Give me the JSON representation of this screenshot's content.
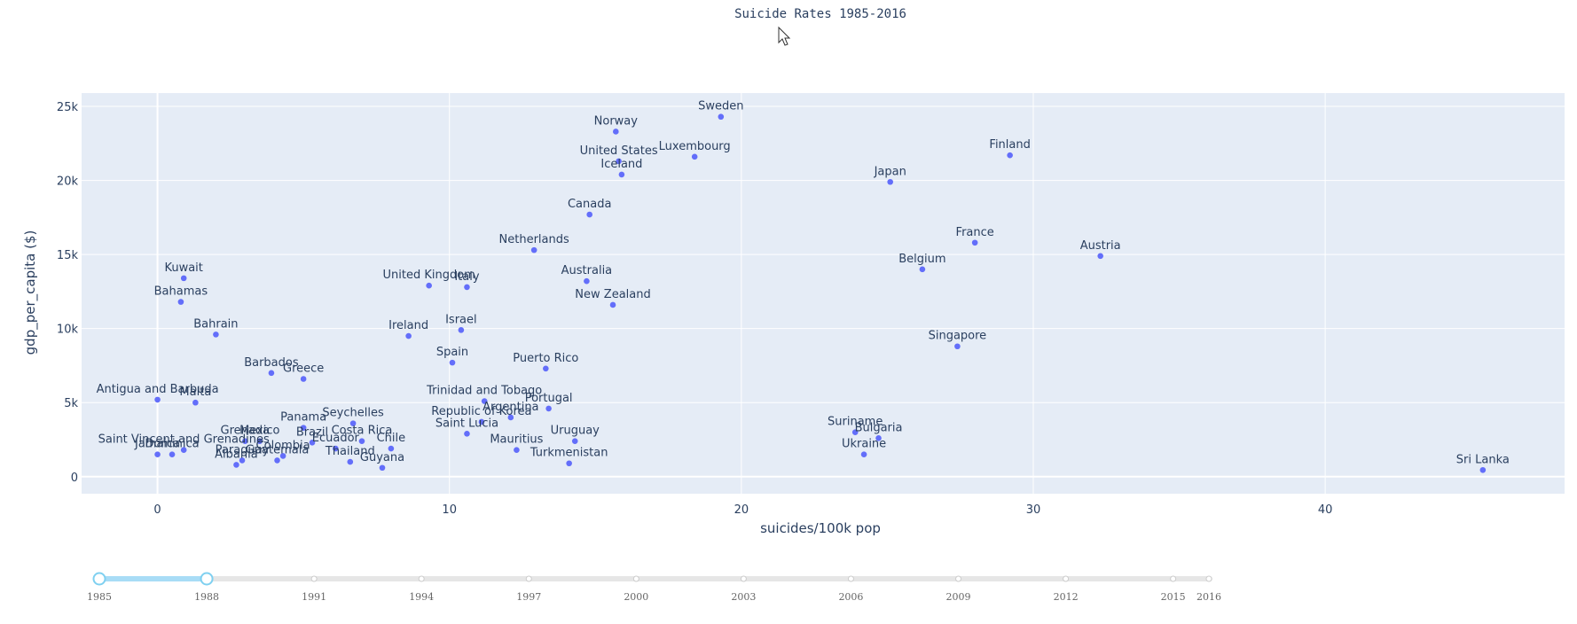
{
  "colors": {
    "plot_bg": "#e5ecf6",
    "grid": "#ffffff",
    "marker": "#636efa",
    "text": "#2a3f5f",
    "slider_track": "#e6e6e6",
    "slider_active": "#a8dcf6",
    "slider_handle": "#7fd0f0"
  },
  "chart_data": {
    "type": "scatter",
    "title": "Suicide Rates 1985-2016",
    "xlabel": "suicides/100k pop",
    "ylabel": "gdp_per_capita ($)",
    "xlim": [
      -2.6,
      48.2
    ],
    "ylim": [
      -1150,
      25900
    ],
    "x_ticks": [
      {
        "value": 0,
        "label": "0"
      },
      {
        "value": 10,
        "label": "10"
      },
      {
        "value": 20,
        "label": "20"
      },
      {
        "value": 30,
        "label": "30"
      },
      {
        "value": 40,
        "label": "40"
      }
    ],
    "y_ticks": [
      {
        "value": 0,
        "label": "0"
      },
      {
        "value": 5000,
        "label": "5k"
      },
      {
        "value": 10000,
        "label": "10k"
      },
      {
        "value": 15000,
        "label": "15k"
      },
      {
        "value": 20000,
        "label": "20k"
      },
      {
        "value": 25000,
        "label": "25k"
      }
    ],
    "points": [
      {
        "label": "Sweden",
        "x": 19.3,
        "y": 24300
      },
      {
        "label": "Norway",
        "x": 15.7,
        "y": 23300
      },
      {
        "label": "United States",
        "x": 15.8,
        "y": 21300
      },
      {
        "label": "Luxembourg",
        "x": 18.4,
        "y": 21600
      },
      {
        "label": "Iceland",
        "x": 15.9,
        "y": 20400
      },
      {
        "label": "Finland",
        "x": 29.2,
        "y": 21700
      },
      {
        "label": "Japan",
        "x": 25.1,
        "y": 19900
      },
      {
        "label": "Canada",
        "x": 14.8,
        "y": 17700
      },
      {
        "label": "Netherlands",
        "x": 12.9,
        "y": 15300
      },
      {
        "label": "France",
        "x": 28.0,
        "y": 15800
      },
      {
        "label": "Austria",
        "x": 32.3,
        "y": 14900
      },
      {
        "label": "Belgium",
        "x": 26.2,
        "y": 14000
      },
      {
        "label": "Australia",
        "x": 14.7,
        "y": 13200
      },
      {
        "label": "United Kingdom",
        "x": 9.3,
        "y": 12900
      },
      {
        "label": "Italy",
        "x": 10.6,
        "y": 12800
      },
      {
        "label": "New Zealand",
        "x": 15.6,
        "y": 11600
      },
      {
        "label": "Kuwait",
        "x": 0.9,
        "y": 13400
      },
      {
        "label": "Bahamas",
        "x": 0.8,
        "y": 11800
      },
      {
        "label": "Bahrain",
        "x": 2.0,
        "y": 9600
      },
      {
        "label": "Israel",
        "x": 10.4,
        "y": 9900
      },
      {
        "label": "Ireland",
        "x": 8.6,
        "y": 9500
      },
      {
        "label": "Singapore",
        "x": 27.4,
        "y": 8800
      },
      {
        "label": "Spain",
        "x": 10.1,
        "y": 7700
      },
      {
        "label": "Puerto Rico",
        "x": 13.3,
        "y": 7300
      },
      {
        "label": "Barbados",
        "x": 3.9,
        "y": 7000
      },
      {
        "label": "Greece",
        "x": 5.0,
        "y": 6600
      },
      {
        "label": "Antigua and Barbuda",
        "x": 0.0,
        "y": 5200
      },
      {
        "label": "Malta",
        "x": 1.3,
        "y": 5000
      },
      {
        "label": "Trinidad and Tobago",
        "x": 11.2,
        "y": 5100
      },
      {
        "label": "Portugal",
        "x": 13.4,
        "y": 4600
      },
      {
        "label": "Argentina",
        "x": 12.1,
        "y": 4000
      },
      {
        "label": "Republic of Korea",
        "x": 11.1,
        "y": 3700
      },
      {
        "label": "Seychelles",
        "x": 6.7,
        "y": 3600
      },
      {
        "label": "Panama",
        "x": 5.0,
        "y": 3300
      },
      {
        "label": "Saint Lucia",
        "x": 10.6,
        "y": 2900
      },
      {
        "label": "Uruguay",
        "x": 14.3,
        "y": 2400
      },
      {
        "label": "Suriname",
        "x": 23.9,
        "y": 3000
      },
      {
        "label": "Bulgaria",
        "x": 24.7,
        "y": 2600
      },
      {
        "label": "Grenada",
        "x": 3.0,
        "y": 2400
      },
      {
        "label": "Mexico",
        "x": 3.5,
        "y": 2400
      },
      {
        "label": "Brazil",
        "x": 5.3,
        "y": 2300
      },
      {
        "label": "Costa Rica",
        "x": 7.0,
        "y": 2400
      },
      {
        "label": "Ecuador",
        "x": 6.1,
        "y": 1900
      },
      {
        "label": "Chile",
        "x": 8.0,
        "y": 1900
      },
      {
        "label": "Saint Vincent and Grenadines",
        "x": 0.9,
        "y": 1800
      },
      {
        "label": "Jamaica",
        "x": 0.0,
        "y": 1500
      },
      {
        "label": "Dominica",
        "x": 0.5,
        "y": 1500
      },
      {
        "label": "Mauritius",
        "x": 12.3,
        "y": 1800
      },
      {
        "label": "Colombia",
        "x": 4.3,
        "y": 1400
      },
      {
        "label": "Guatemala",
        "x": 4.1,
        "y": 1100
      },
      {
        "label": "Paraguay",
        "x": 2.9,
        "y": 1100
      },
      {
        "label": "Albania",
        "x": 2.7,
        "y": 800
      },
      {
        "label": "Ukraine",
        "x": 24.2,
        "y": 1500
      },
      {
        "label": "Thailand",
        "x": 6.6,
        "y": 1000
      },
      {
        "label": "Guyana",
        "x": 7.7,
        "y": 600
      },
      {
        "label": "Turkmenistan",
        "x": 14.1,
        "y": 900
      },
      {
        "label": "Sri Lanka",
        "x": 45.4,
        "y": 450
      }
    ]
  },
  "slider": {
    "start_index": 0,
    "current_index": 3,
    "steps": [
      {
        "year": 1985,
        "label": "1985"
      },
      {
        "year": 1986
      },
      {
        "year": 1987
      },
      {
        "year": 1988,
        "label": "1988"
      },
      {
        "year": 1989
      },
      {
        "year": 1990
      },
      {
        "year": 1991,
        "label": "1991"
      },
      {
        "year": 1992
      },
      {
        "year": 1993
      },
      {
        "year": 1994,
        "label": "1994"
      },
      {
        "year": 1995
      },
      {
        "year": 1996
      },
      {
        "year": 1997,
        "label": "1997"
      },
      {
        "year": 1998
      },
      {
        "year": 1999
      },
      {
        "year": 2000,
        "label": "2000"
      },
      {
        "year": 2001
      },
      {
        "year": 2002
      },
      {
        "year": 2003,
        "label": "2003"
      },
      {
        "year": 2004
      },
      {
        "year": 2005
      },
      {
        "year": 2006,
        "label": "2006"
      },
      {
        "year": 2007
      },
      {
        "year": 2008
      },
      {
        "year": 2009,
        "label": "2009"
      },
      {
        "year": 2010
      },
      {
        "year": 2011
      },
      {
        "year": 2012,
        "label": "2012"
      },
      {
        "year": 2013
      },
      {
        "year": 2014
      },
      {
        "year": 2015,
        "label": "2015"
      },
      {
        "year": 2016,
        "label": "2016"
      }
    ]
  }
}
